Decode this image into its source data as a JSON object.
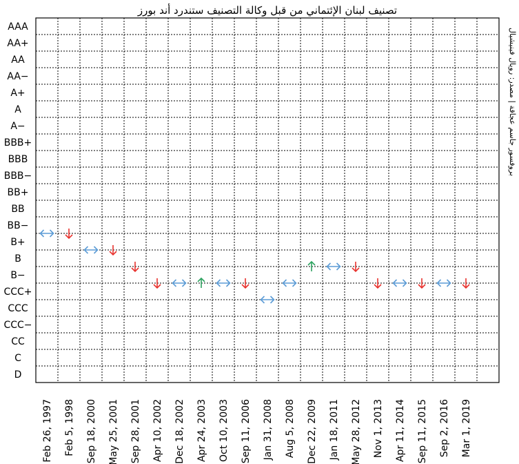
{
  "chart_data": {
    "type": "scatter",
    "title": "تصنيف لبنان الإئتماني من قبل وكالة التصنيف ستندرد أند بورز",
    "source": "بروفسور جاسم عجاقة | مصدر: رويال فينيشيال",
    "rating_scale": [
      "AAA",
      "AA+",
      "AA",
      "AA−",
      "A+",
      "A",
      "A−",
      "BBB+",
      "BBB",
      "BBB−",
      "BB+",
      "BB",
      "BB−",
      "B+",
      "B",
      "B−",
      "CCC+",
      "CCC",
      "CCC−",
      "CC",
      "C",
      "D"
    ],
    "dates": [
      "Feb 26, 1997",
      "Feb 5, 1998",
      "Sep 18, 2000",
      "May 25, 2001",
      "Sep 28, 2001",
      "Apr 10, 2002",
      "Dec 18, 2002",
      "Apr 24, 2003",
      "Oct 10, 2003",
      "Sep 11, 2006",
      "Jan 31, 2008",
      "Aug 5, 2008",
      "Dec 22, 2009",
      "Jan 18, 2011",
      "May 28, 2012",
      "Nov 1, 2013",
      "Apr 11, 2014",
      "Sep 11, 2015",
      "Sep 2, 2016",
      "Mar 1, 2019"
    ],
    "points": [
      {
        "date": "Feb 26, 1997",
        "rating": "BB−",
        "action": "stable"
      },
      {
        "date": "Feb 5, 1998",
        "rating": "BB−",
        "action": "downgrade"
      },
      {
        "date": "Sep 18, 2000",
        "rating": "B+",
        "action": "stable"
      },
      {
        "date": "May 25, 2001",
        "rating": "B+",
        "action": "downgrade"
      },
      {
        "date": "Sep 28, 2001",
        "rating": "B",
        "action": "downgrade"
      },
      {
        "date": "Apr 10, 2002",
        "rating": "B−",
        "action": "downgrade"
      },
      {
        "date": "Dec 18, 2002",
        "rating": "B−",
        "action": "stable"
      },
      {
        "date": "Apr 24, 2003",
        "rating": "B−",
        "action": "upgrade"
      },
      {
        "date": "Oct 10, 2003",
        "rating": "B−",
        "action": "stable"
      },
      {
        "date": "Sep 11, 2006",
        "rating": "B−",
        "action": "downgrade"
      },
      {
        "date": "Jan 31, 2008",
        "rating": "CCC+",
        "action": "stable"
      },
      {
        "date": "Aug 5, 2008",
        "rating": "B−",
        "action": "stable"
      },
      {
        "date": "Dec 22, 2009",
        "rating": "B",
        "action": "upgrade"
      },
      {
        "date": "Jan 18, 2011",
        "rating": "B",
        "action": "stable"
      },
      {
        "date": "May 28, 2012",
        "rating": "B",
        "action": "downgrade"
      },
      {
        "date": "Nov 1, 2013",
        "rating": "B−",
        "action": "downgrade"
      },
      {
        "date": "Apr 11, 2014",
        "rating": "B−",
        "action": "stable"
      },
      {
        "date": "Sep 11, 2015",
        "rating": "B−",
        "action": "downgrade"
      },
      {
        "date": "Sep 2, 2016",
        "rating": "B−",
        "action": "stable"
      },
      {
        "date": "Mar 1, 2019",
        "rating": "B−",
        "action": "downgrade"
      }
    ],
    "action_styles": {
      "downgrade": {
        "icon": "down-arrow-icon",
        "color": "#e8322d"
      },
      "upgrade": {
        "icon": "up-arrow-icon",
        "color": "#2ca25f"
      },
      "stable": {
        "icon": "left-right-arrow-icon",
        "color": "#5b9bd5"
      }
    },
    "grid": true,
    "legend": "none"
  }
}
